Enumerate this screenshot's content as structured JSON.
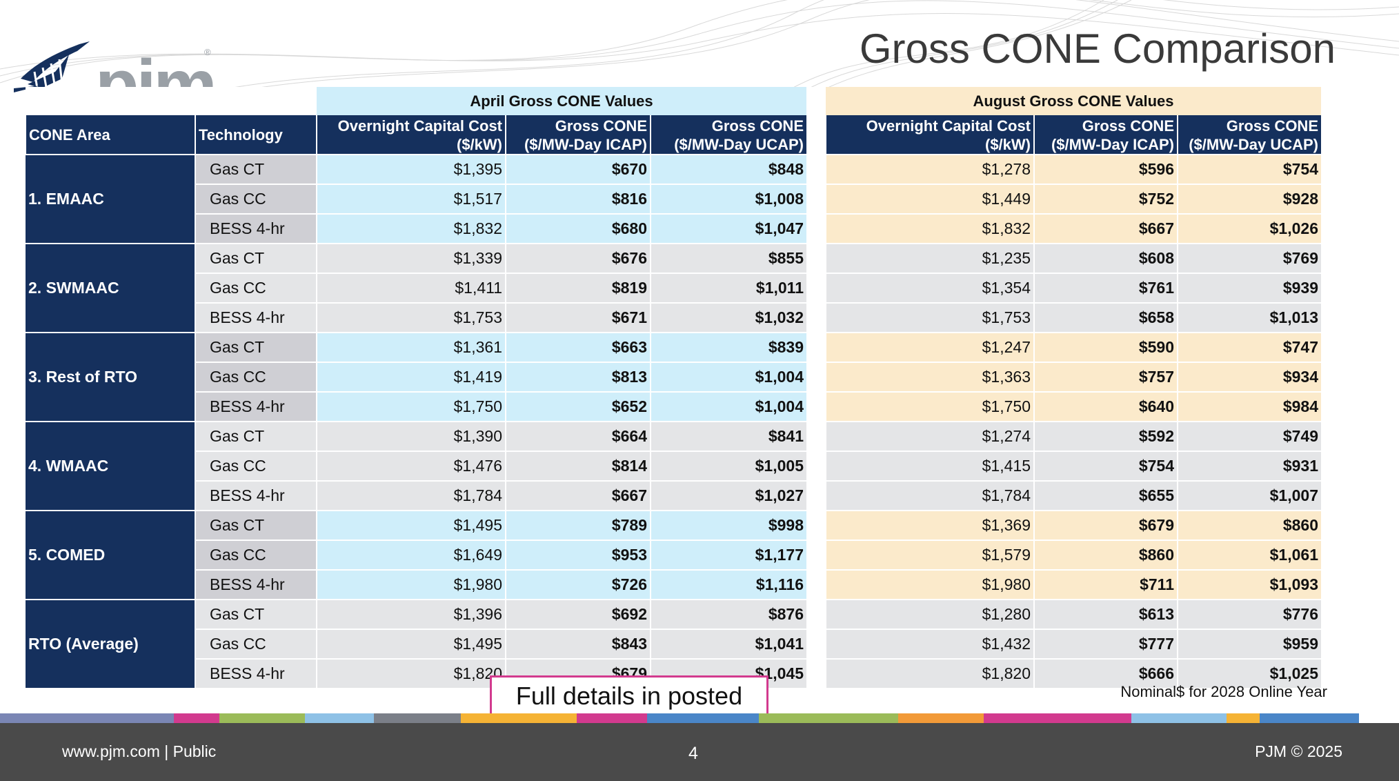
{
  "header": {
    "title": "Gross CONE Comparison",
    "logo_text": "pjm",
    "logo_registered": "®"
  },
  "table": {
    "april_group": "April Gross CONE Values",
    "august_group": "August Gross CONE Values",
    "columns": {
      "area": "CONE Area",
      "technology": "Technology",
      "capital_cost_l1": "Overnight Capital Cost",
      "capital_cost_l2": "($/kW)",
      "icap_l1": "Gross CONE",
      "icap_l2": "($/MW-Day ICAP)",
      "ucap_l1": "Gross CONE",
      "ucap_l2": "($/MW-Day UCAP)"
    },
    "areas": [
      {
        "name": "1. EMAAC",
        "rows": [
          {
            "tech": "Gas CT",
            "april": [
              "$1,395",
              "$670",
              "$848"
            ],
            "august": [
              "$1,278",
              "$596",
              "$754"
            ]
          },
          {
            "tech": "Gas CC",
            "april": [
              "$1,517",
              "$816",
              "$1,008"
            ],
            "august": [
              "$1,449",
              "$752",
              "$928"
            ]
          },
          {
            "tech": "BESS 4-hr",
            "april": [
              "$1,832",
              "$680",
              "$1,047"
            ],
            "august": [
              "$1,832",
              "$667",
              "$1,026"
            ]
          }
        ]
      },
      {
        "name": "2. SWMAAC",
        "rows": [
          {
            "tech": "Gas CT",
            "april": [
              "$1,339",
              "$676",
              "$855"
            ],
            "august": [
              "$1,235",
              "$608",
              "$769"
            ]
          },
          {
            "tech": "Gas CC",
            "april": [
              "$1,411",
              "$819",
              "$1,011"
            ],
            "august": [
              "$1,354",
              "$761",
              "$939"
            ]
          },
          {
            "tech": "BESS 4-hr",
            "april": [
              "$1,753",
              "$671",
              "$1,032"
            ],
            "august": [
              "$1,753",
              "$658",
              "$1,013"
            ]
          }
        ]
      },
      {
        "name": "3. Rest of RTO",
        "rows": [
          {
            "tech": "Gas CT",
            "april": [
              "$1,361",
              "$663",
              "$839"
            ],
            "august": [
              "$1,247",
              "$590",
              "$747"
            ]
          },
          {
            "tech": "Gas CC",
            "april": [
              "$1,419",
              "$813",
              "$1,004"
            ],
            "august": [
              "$1,363",
              "$757",
              "$934"
            ]
          },
          {
            "tech": "BESS 4-hr",
            "april": [
              "$1,750",
              "$652",
              "$1,004"
            ],
            "august": [
              "$1,750",
              "$640",
              "$984"
            ]
          }
        ]
      },
      {
        "name": "4. WMAAC",
        "rows": [
          {
            "tech": "Gas CT",
            "april": [
              "$1,390",
              "$664",
              "$841"
            ],
            "august": [
              "$1,274",
              "$592",
              "$749"
            ]
          },
          {
            "tech": "Gas CC",
            "april": [
              "$1,476",
              "$814",
              "$1,005"
            ],
            "august": [
              "$1,415",
              "$754",
              "$931"
            ]
          },
          {
            "tech": "BESS 4-hr",
            "april": [
              "$1,784",
              "$667",
              "$1,027"
            ],
            "august": [
              "$1,784",
              "$655",
              "$1,007"
            ]
          }
        ]
      },
      {
        "name": "5. COMED",
        "rows": [
          {
            "tech": "Gas CT",
            "april": [
              "$1,495",
              "$789",
              "$998"
            ],
            "august": [
              "$1,369",
              "$679",
              "$860"
            ]
          },
          {
            "tech": "Gas CC",
            "april": [
              "$1,649",
              "$953",
              "$1,177"
            ],
            "august": [
              "$1,579",
              "$860",
              "$1,061"
            ]
          },
          {
            "tech": "BESS 4-hr",
            "april": [
              "$1,980",
              "$726",
              "$1,116"
            ],
            "august": [
              "$1,980",
              "$711",
              "$1,093"
            ]
          }
        ]
      },
      {
        "name": "RTO (Average)",
        "rows": [
          {
            "tech": "Gas CT",
            "april": [
              "$1,396",
              "$692",
              "$876"
            ],
            "august": [
              "$1,280",
              "$613",
              "$776"
            ]
          },
          {
            "tech": "Gas CC",
            "april": [
              "$1,495",
              "$843",
              "$1,041"
            ],
            "august": [
              "$1,432",
              "$777",
              "$959"
            ]
          },
          {
            "tech": "BESS 4-hr",
            "april": [
              "$1,820",
              "$679",
              "$1,045"
            ],
            "august": [
              "$1,820",
              "$666",
              "$1,025"
            ]
          }
        ]
      }
    ]
  },
  "callout": "Full details in posted Brattle CONE model",
  "note": "Nominal$ for 2028 Online Year",
  "footer": {
    "left": "www.pjm.com | Public",
    "page": "4",
    "right": "PJM © 2025"
  },
  "colors": {
    "navy": "#15305d",
    "april_fill": "#cfeefa",
    "august_fill": "#fbeacb",
    "callout_border": "#d23a8e",
    "footer_bg": "#4a4a4a",
    "stripe": [
      "#7a86b4",
      "#d23a8e",
      "#9bbb59",
      "#8ec1e6",
      "#7b7f88",
      "#f5b335",
      "#d23a8e",
      "#4a86c8",
      "#9bbb59",
      "#f29a38",
      "#d23a8e",
      "#8ec1e6",
      "#f5b335",
      "#4a86c8"
    ]
  }
}
